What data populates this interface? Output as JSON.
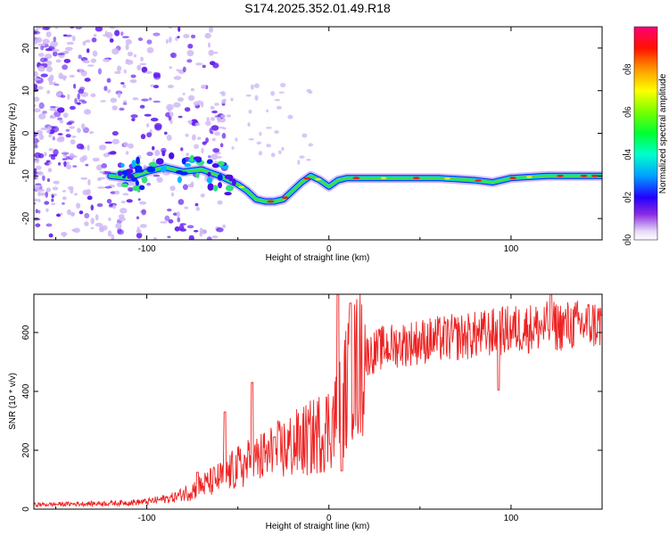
{
  "title": "S174.2025.352.01.49.R18",
  "colors": {
    "snr_line": "#ee2222",
    "ridge_fill": "#44dd44",
    "ridge_edge": "#0022ff",
    "ridge_peak": "#ee2200",
    "scatter": "#6622ee",
    "scatter_light": "#cfb8f5"
  },
  "chart_data": [
    {
      "type": "heatmap",
      "name": "spectrogram",
      "xlabel": "Height of straight line (km)",
      "ylabel": "Frequency (Hz)",
      "xlim": [
        -162,
        150
      ],
      "ylim": [
        -25,
        25
      ],
      "xticks": [
        -100,
        0,
        100
      ],
      "yticks": [
        -20,
        -10,
        0,
        10,
        20
      ],
      "xtick_labels": [
        "-100",
        "0",
        "100"
      ],
      "ytick_labels": [
        "-20",
        "-10",
        "0",
        "10",
        "20"
      ],
      "colorbar": {
        "label": "Normalized spectral amplitude",
        "range": [
          0,
          1
        ],
        "ticks": [
          0.0,
          0.2,
          0.4,
          0.6,
          0.8
        ],
        "tick_labels": [
          "0.0",
          "0.2",
          "0.4",
          "0.6",
          "0.8"
        ],
        "colormap": [
          "#ffffff",
          "#e6d9f7",
          "#8a2be2",
          "#0000ff",
          "#00ccff",
          "#00ff66",
          "#66ff00",
          "#ffff00",
          "#ff9900",
          "#ff0000",
          "#ff0066"
        ]
      },
      "ridge": {
        "x": [
          -120,
          -110,
          -100,
          -90,
          -80,
          -70,
          -60,
          -50,
          -45,
          -40,
          -35,
          -30,
          -25,
          -20,
          -15,
          -10,
          -5,
          0,
          5,
          10,
          20,
          40,
          60,
          80,
          90,
          100,
          120,
          140,
          150
        ],
        "y": [
          -10,
          -10.5,
          -9,
          -8,
          -9,
          -8.5,
          -10,
          -12,
          -13.5,
          -15.5,
          -16,
          -16,
          -15.5,
          -13.5,
          -11.5,
          -10,
          -11,
          -12.5,
          -11,
          -10.5,
          -10.5,
          -10.5,
          -10.5,
          -11,
          -11.5,
          -10.5,
          -10,
          -10,
          -10
        ]
      }
    },
    {
      "type": "line",
      "name": "snr",
      "xlabel": "Height of straight line (km)",
      "ylabel": "SNR (10 * v/v)",
      "xlim": [
        -162,
        150
      ],
      "ylim": [
        0,
        730
      ],
      "xticks": [
        -100,
        0,
        100
      ],
      "yticks": [
        0,
        200,
        400,
        600
      ],
      "xtick_labels": [
        "-100",
        "0",
        "100"
      ],
      "ytick_labels": [
        "0",
        "200",
        "400",
        "600"
      ],
      "envelope": {
        "x": [
          -162,
          -120,
          -100,
          -85,
          -75,
          -60,
          -50,
          -40,
          -30,
          -20,
          -10,
          0,
          5,
          8,
          10,
          15,
          20,
          30,
          50,
          80,
          100,
          120,
          150
        ],
        "y": [
          15,
          20,
          25,
          40,
          65,
          105,
          140,
          165,
          190,
          215,
          240,
          280,
          320,
          380,
          420,
          480,
          520,
          550,
          570,
          590,
          610,
          620,
          630
        ]
      },
      "spikes": [
        {
          "x": -72,
          "y": 125
        },
        {
          "x": -57,
          "y": 330
        },
        {
          "x": -42,
          "y": 430
        },
        {
          "x": -30,
          "y": 245
        },
        {
          "x": 5,
          "y": 730
        },
        {
          "x": 7,
          "y": 130
        },
        {
          "x": 12,
          "y": 700
        },
        {
          "x": 93,
          "y": 405
        },
        {
          "x": 122,
          "y": 730
        }
      ]
    }
  ]
}
